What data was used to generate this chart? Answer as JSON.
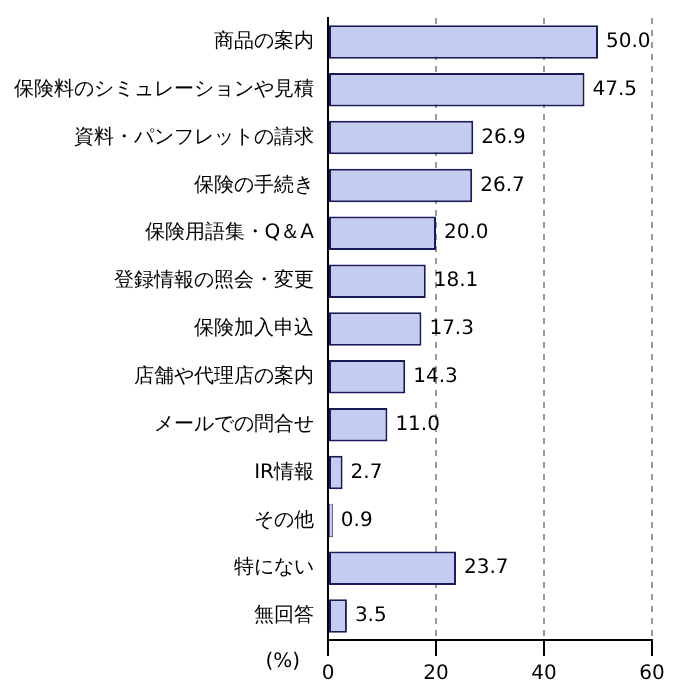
{
  "chart_data": {
    "type": "bar",
    "orientation": "horizontal",
    "xlabel": "(%)",
    "categories": [
      "商品の案内",
      "保険料のシミュレーションや見積",
      "資料・パンフレットの請求",
      "保険の手続き",
      "保険用語集・Q＆A",
      "登録情報の照会・変更",
      "保険加入申込",
      "店舗や代理店の案内",
      "メールでの問合せ",
      "IR情報",
      "その他",
      "特にない",
      "無回答"
    ],
    "values": [
      50.0,
      47.5,
      26.9,
      26.7,
      20.0,
      18.1,
      17.3,
      14.3,
      11.0,
      2.7,
      0.9,
      23.7,
      3.5
    ],
    "value_labels": [
      "50.0",
      "47.5",
      "26.9",
      "26.7",
      "20.0",
      "18.1",
      "17.3",
      "14.3",
      "11.0",
      "2.7",
      "0.9",
      "23.7",
      "3.5"
    ],
    "color": "#c4ccf2",
    "xlim": [
      0,
      60
    ],
    "xticks": [
      0,
      20,
      40,
      60
    ],
    "grid": "x"
  }
}
